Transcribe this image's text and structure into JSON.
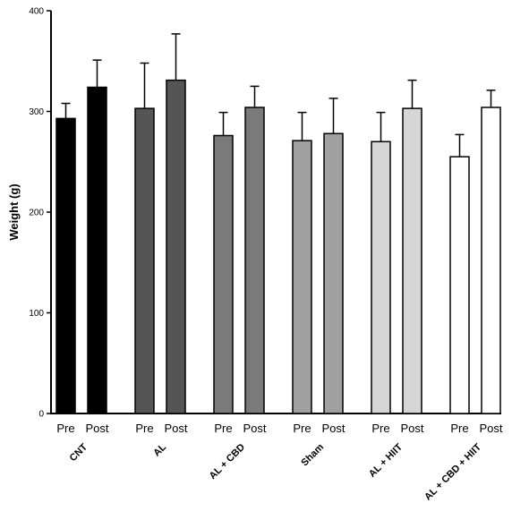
{
  "chart_data": {
    "type": "bar",
    "ylabel": "Weight (g)",
    "ylim": [
      0,
      400
    ],
    "yticks": [
      0,
      100,
      200,
      300,
      400
    ],
    "bar_labels": [
      "Pre",
      "Post"
    ],
    "groups": [
      {
        "name": "CNT",
        "color": "#000000",
        "pre": {
          "mean": 293,
          "sd": 15
        },
        "post": {
          "mean": 324,
          "sd": 27
        }
      },
      {
        "name": "AL",
        "color": "#555555",
        "pre": {
          "mean": 303,
          "sd": 45
        },
        "post": {
          "mean": 331,
          "sd": 46
        }
      },
      {
        "name": "AL + CBD",
        "color": "#7a7a7a",
        "pre": {
          "mean": 276,
          "sd": 23
        },
        "post": {
          "mean": 304,
          "sd": 21
        }
      },
      {
        "name": "Sham",
        "color": "#a0a0a0",
        "pre": {
          "mean": 271,
          "sd": 28
        },
        "post": {
          "mean": 278,
          "sd": 35
        }
      },
      {
        "name": "AL + HIIT",
        "color": "#d6d6d6",
        "pre": {
          "mean": 270,
          "sd": 29
        },
        "post": {
          "mean": 303,
          "sd": 28
        }
      },
      {
        "name": "AL + CBD + HIIT",
        "color": "#ffffff",
        "pre": {
          "mean": 255,
          "sd": 22
        },
        "post": {
          "mean": 304,
          "sd": 17
        }
      }
    ]
  }
}
